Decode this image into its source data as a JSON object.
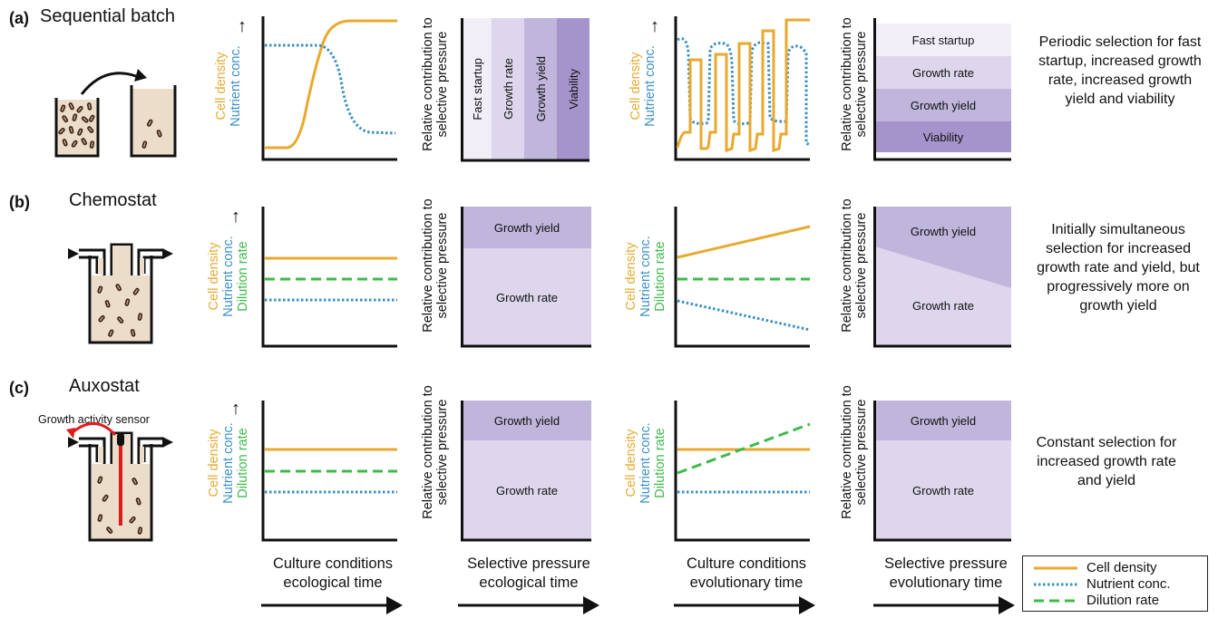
{
  "rows": [
    {
      "letter": "(a)",
      "name": "Sequential batch",
      "note": "Periodic selection for fast startup, increased growth rate, increased growth yield and viability"
    },
    {
      "letter": "(b)",
      "name": "Chemostat",
      "note": "Initially simultaneous selection for increased growth rate and yield, but progressively more on growth yield"
    },
    {
      "letter": "(c)",
      "name": "Auxostat",
      "note": "Constant selection for increased growth rate and yield"
    }
  ],
  "sensor_label": "Growth activity sensor",
  "y_axis_culture": {
    "cell_density": "Cell density",
    "nutrient": "Nutrient conc.",
    "dilution": "Dilution rate"
  },
  "y_axis_pressure": [
    "Relative contribution to",
    "selective pressure"
  ],
  "segments": {
    "fast_startup": "Fast startup",
    "growth_rate": "Growth rate",
    "growth_yield": "Growth yield",
    "viability": "Viability"
  },
  "columns": [
    {
      "title": "Culture conditions",
      "sub": "ecological time"
    },
    {
      "title": "Selective pressure",
      "sub": "ecological time"
    },
    {
      "title": "Culture conditions",
      "sub": "evolutionary time"
    },
    {
      "title": "Selective pressure",
      "sub": "evolutionary time"
    }
  ],
  "legend": [
    "Cell density",
    "Nutrient conc.",
    "Dilution rate"
  ],
  "colors": {
    "cell_density": "#e8a92e",
    "nutrient": "#3a8fc4",
    "dilution": "#3dbb4a",
    "purple1": "#f1eef7",
    "purple2": "#ddd6ec",
    "purple3": "#c0b5db",
    "purple4": "#a594cc",
    "beige": "#ecdcca"
  }
}
